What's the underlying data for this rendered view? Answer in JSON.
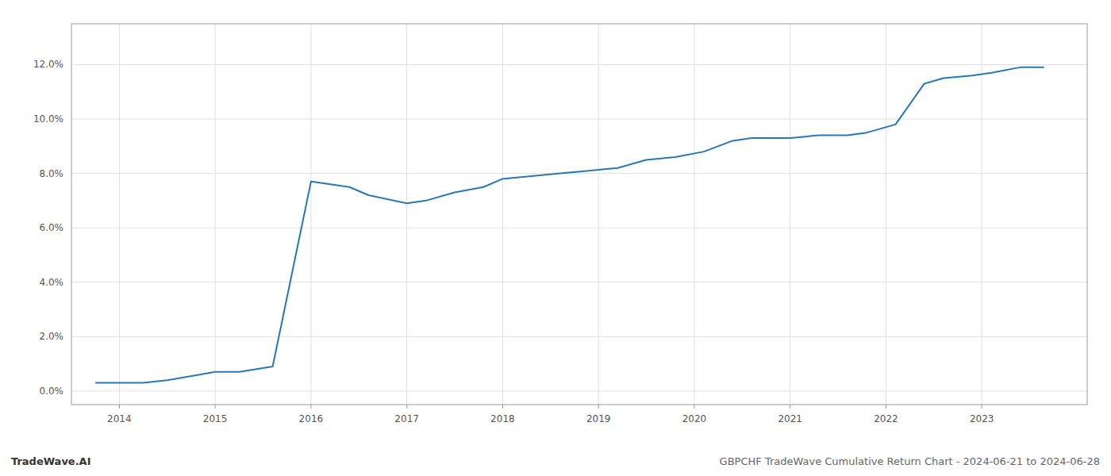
{
  "chart_data": {
    "type": "line",
    "title": "GBPCHF TradeWave Cumulative Return Chart - 2024-06-21 to 2024-06-28",
    "annotations": [
      "TradeWave.AI"
    ],
    "x": [
      2013.75,
      2014.25,
      2014.5,
      2015.0,
      2015.25,
      2015.6,
      2016.0,
      2016.4,
      2016.6,
      2017.0,
      2017.2,
      2017.5,
      2017.8,
      2018.0,
      2018.3,
      2018.6,
      2018.9,
      2019.2,
      2019.5,
      2019.8,
      2020.1,
      2020.4,
      2020.6,
      2020.8,
      2021.0,
      2021.3,
      2021.6,
      2021.8,
      2022.1,
      2022.4,
      2022.6,
      2022.9,
      2023.1,
      2023.4,
      2023.65
    ],
    "values": [
      0.003,
      0.003,
      0.004,
      0.007,
      0.007,
      0.009,
      0.077,
      0.075,
      0.072,
      0.069,
      0.07,
      0.073,
      0.075,
      0.078,
      0.079,
      0.08,
      0.081,
      0.082,
      0.085,
      0.086,
      0.088,
      0.092,
      0.093,
      0.093,
      0.093,
      0.094,
      0.094,
      0.095,
      0.098,
      0.113,
      0.115,
      0.116,
      0.117,
      0.119,
      0.119
    ],
    "color": "#2878b5",
    "xlim": [
      2013.5,
      2024.1
    ],
    "ylim": [
      -0.005,
      0.135
    ],
    "xticks": [
      2014,
      2015,
      2016,
      2017,
      2018,
      2019,
      2020,
      2021,
      2022,
      2023
    ],
    "yticks": [
      {
        "value": 0.0,
        "label": "0.0%"
      },
      {
        "value": 0.02,
        "label": "2.0%"
      },
      {
        "value": 0.04,
        "label": "4.0%"
      },
      {
        "value": 0.06,
        "label": "6.0%"
      },
      {
        "value": 0.08,
        "label": "8.0%"
      },
      {
        "value": 0.1,
        "label": "10.0%"
      },
      {
        "value": 0.12,
        "label": "12.0%"
      }
    ],
    "grid": true
  }
}
